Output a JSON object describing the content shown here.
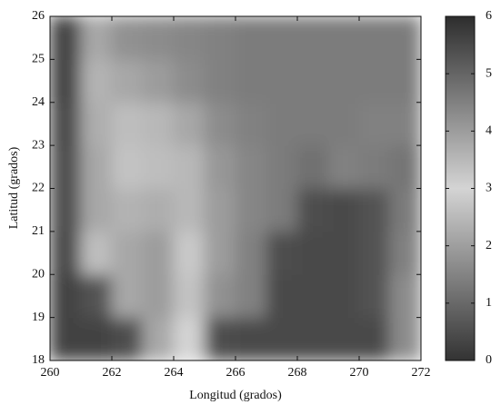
{
  "chart_data": {
    "type": "heatmap",
    "xlabel": "Longitud (grados)",
    "ylabel": "Latitud (grados)",
    "xbins": [
      260,
      261,
      262,
      263,
      264,
      265,
      266,
      267,
      268,
      269,
      270,
      271,
      272
    ],
    "ybins": [
      18,
      19,
      20,
      21,
      22,
      23,
      24,
      25,
      26
    ],
    "values": [
      [
        0.3,
        0.3,
        0.5,
        3.8,
        3.0,
        0.5,
        0.4,
        0.4,
        0.4,
        0.4,
        0.4,
        4.3
      ],
      [
        0.3,
        0.6,
        3.8,
        4.0,
        3.3,
        4.2,
        4.5,
        0.4,
        0.4,
        0.4,
        0.6,
        4.3
      ],
      [
        0.4,
        3.4,
        3.8,
        4.0,
        3.2,
        4.0,
        4.5,
        0.5,
        0.4,
        0.4,
        0.6,
        4.5
      ],
      [
        0.5,
        3.8,
        3.6,
        3.7,
        3.5,
        4.0,
        4.4,
        4.6,
        0.5,
        0.4,
        0.6,
        4.6
      ],
      [
        0.5,
        3.8,
        3.3,
        3.4,
        3.5,
        4.1,
        4.4,
        4.6,
        4.8,
        4.5,
        4.6,
        4.7
      ],
      [
        0.4,
        3.7,
        3.4,
        3.5,
        3.8,
        4.3,
        4.5,
        4.6,
        4.6,
        4.6,
        4.5,
        4.5
      ],
      [
        0.3,
        3.6,
        3.8,
        4.0,
        4.3,
        4.5,
        4.6,
        4.6,
        4.6,
        4.6,
        4.6,
        4.6
      ],
      [
        0.3,
        3.8,
        4.2,
        4.3,
        4.4,
        4.5,
        4.6,
        4.6,
        4.6,
        4.6,
        4.6,
        4.6
      ]
    ],
    "xlim": [
      260,
      272
    ],
    "xticks": [
      260,
      262,
      264,
      266,
      268,
      270,
      272
    ],
    "ylim": [
      18,
      26
    ],
    "yticks": [
      18,
      19,
      20,
      21,
      22,
      23,
      24,
      25,
      26
    ],
    "clim": [
      0,
      6
    ],
    "cticks": [
      0,
      1,
      2,
      3,
      4,
      5,
      6
    ],
    "colormap": [
      {
        "value": 0,
        "color": "#333333"
      },
      {
        "value": 3,
        "color": "#d4d4d4"
      },
      {
        "value": 6,
        "color": "#2d2d2d"
      }
    ]
  }
}
